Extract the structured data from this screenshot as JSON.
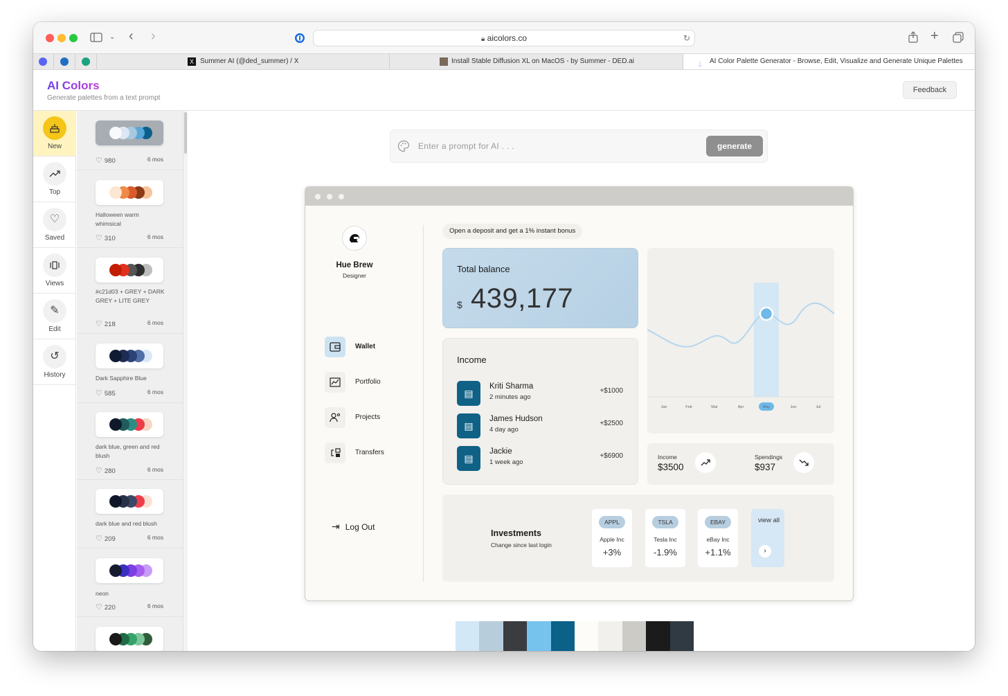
{
  "browser": {
    "url": "aicolors.co",
    "tabs": [
      {
        "title": "Summer AI (@ded_summer) / X"
      },
      {
        "title": "Install Stable Diffusion XL on MacOS - by Summer - DED.ai"
      },
      {
        "title": "AI Color Palette Generator - Browse, Edit, Visualize and Generate Unique Palettes"
      }
    ]
  },
  "app": {
    "title": "AI Colors",
    "tagline": "Generate palettes from a text prompt",
    "feedback_label": "Feedback"
  },
  "nav": [
    {
      "label": "New",
      "icon": "cake-icon"
    },
    {
      "label": "Top",
      "icon": "trending-up-icon"
    },
    {
      "label": "Saved",
      "icon": "heart-icon"
    },
    {
      "label": "Views",
      "icon": "views-icon"
    },
    {
      "label": "Edit",
      "icon": "pencil-icon"
    },
    {
      "label": "History",
      "icon": "history-icon"
    }
  ],
  "palettes": [
    {
      "name": "",
      "likes": "980",
      "age": "6 mos",
      "colors": [
        "#f8f9fb",
        "#dbe8f3",
        "#a8c8e0",
        "#5aa7d9",
        "#0b5f8a"
      ]
    },
    {
      "name": "Halloween warm whimsical",
      "likes": "310",
      "age": "6 mos",
      "colors": [
        "#fbe7d2",
        "#f08a48",
        "#d95b2c",
        "#8b3a17",
        "#f6c39a"
      ]
    },
    {
      "name": "#c21d03 + GREY + DARK GREY + LITE GREY",
      "likes": "218",
      "age": "6 mos",
      "colors": [
        "#c21d03",
        "#e0301f",
        "#555555",
        "#2e2e2e",
        "#bdbdbd"
      ]
    },
    {
      "name": "Dark Sapphire Blue",
      "likes": "585",
      "age": "6 mos",
      "colors": [
        "#0f1b33",
        "#1c2c52",
        "#2b4377",
        "#4f6fa6",
        "#dbe7f7"
      ]
    },
    {
      "name": "dark blue, green and red blush",
      "likes": "280",
      "age": "6 mos",
      "colors": [
        "#0e1a2b",
        "#1f5c5b",
        "#2d8c84",
        "#ef3b4a",
        "#f8d6c3"
      ]
    },
    {
      "name": "dark blue and red blush",
      "likes": "209",
      "age": "6 mos",
      "colors": [
        "#0f1729",
        "#27324a",
        "#3c4966",
        "#ef3e4a",
        "#fbe0d4"
      ]
    },
    {
      "name": "neon",
      "likes": "220",
      "age": "6 mos",
      "colors": [
        "#161b2e",
        "#3a2fbf",
        "#7b3fe4",
        "#a85ff0",
        "#c79cf7"
      ]
    },
    {
      "name": "",
      "likes": "",
      "age": "",
      "colors": [
        "#1a1a1a",
        "#1f6b45",
        "#35a36b",
        "#7cc79a",
        "#2f5d3a"
      ]
    }
  ],
  "prompt": {
    "placeholder": "Enter a prompt for AI . . .",
    "button": "generate"
  },
  "preview": {
    "user": {
      "name": "Hue Brew",
      "role": "Designer"
    },
    "menu": [
      {
        "label": "Wallet",
        "icon": "wallet-icon"
      },
      {
        "label": "Portfolio",
        "icon": "portfolio-icon"
      },
      {
        "label": "Projects",
        "icon": "projects-icon"
      },
      {
        "label": "Transfers",
        "icon": "transfers-icon"
      }
    ],
    "logout": "Log Out",
    "promo": "Open a deposit and get a 1% instant bonus",
    "balance": {
      "title": "Total balance",
      "currency": "$",
      "value": "439,177"
    },
    "income": {
      "title": "Income",
      "items": [
        {
          "name": "Kriti Sharma",
          "time": "2 minutes ago",
          "amount": "+$1000"
        },
        {
          "name": "James Hudson",
          "time": "4 day ago",
          "amount": "+$2500"
        },
        {
          "name": "Jackie",
          "time": "1 week ago",
          "amount": "+$6900"
        }
      ]
    },
    "chart": {
      "months": [
        "Jan",
        "Feb",
        "Mar",
        "Apr",
        "May",
        "Jun",
        "Jul"
      ],
      "selected": "May"
    },
    "stats": [
      {
        "label": "Income",
        "value": "$3500",
        "icon": "trending-up-icon"
      },
      {
        "label": "Spendings",
        "value": "$937",
        "icon": "trending-down-icon"
      }
    ],
    "investments": {
      "title": "Investments",
      "subtitle": "Change since last login",
      "stocks": [
        {
          "ticker": "APPL",
          "name": "Apple Inc",
          "change": "+3%"
        },
        {
          "ticker": "TSLA",
          "name": "Tesla Inc",
          "change": "-1.9%"
        },
        {
          "ticker": "EBAY",
          "name": "eBay Inc",
          "change": "+1.1%"
        }
      ],
      "view_all": "view all"
    }
  },
  "palette_strip": [
    "#d3e8f6",
    "#b7cddc",
    "#3a3c3f",
    "#76c3ed",
    "#0b6188",
    "#fdfcf8",
    "#f1f0ec",
    "#cdcbc6",
    "#1b1b1b",
    "#2f3a42"
  ]
}
